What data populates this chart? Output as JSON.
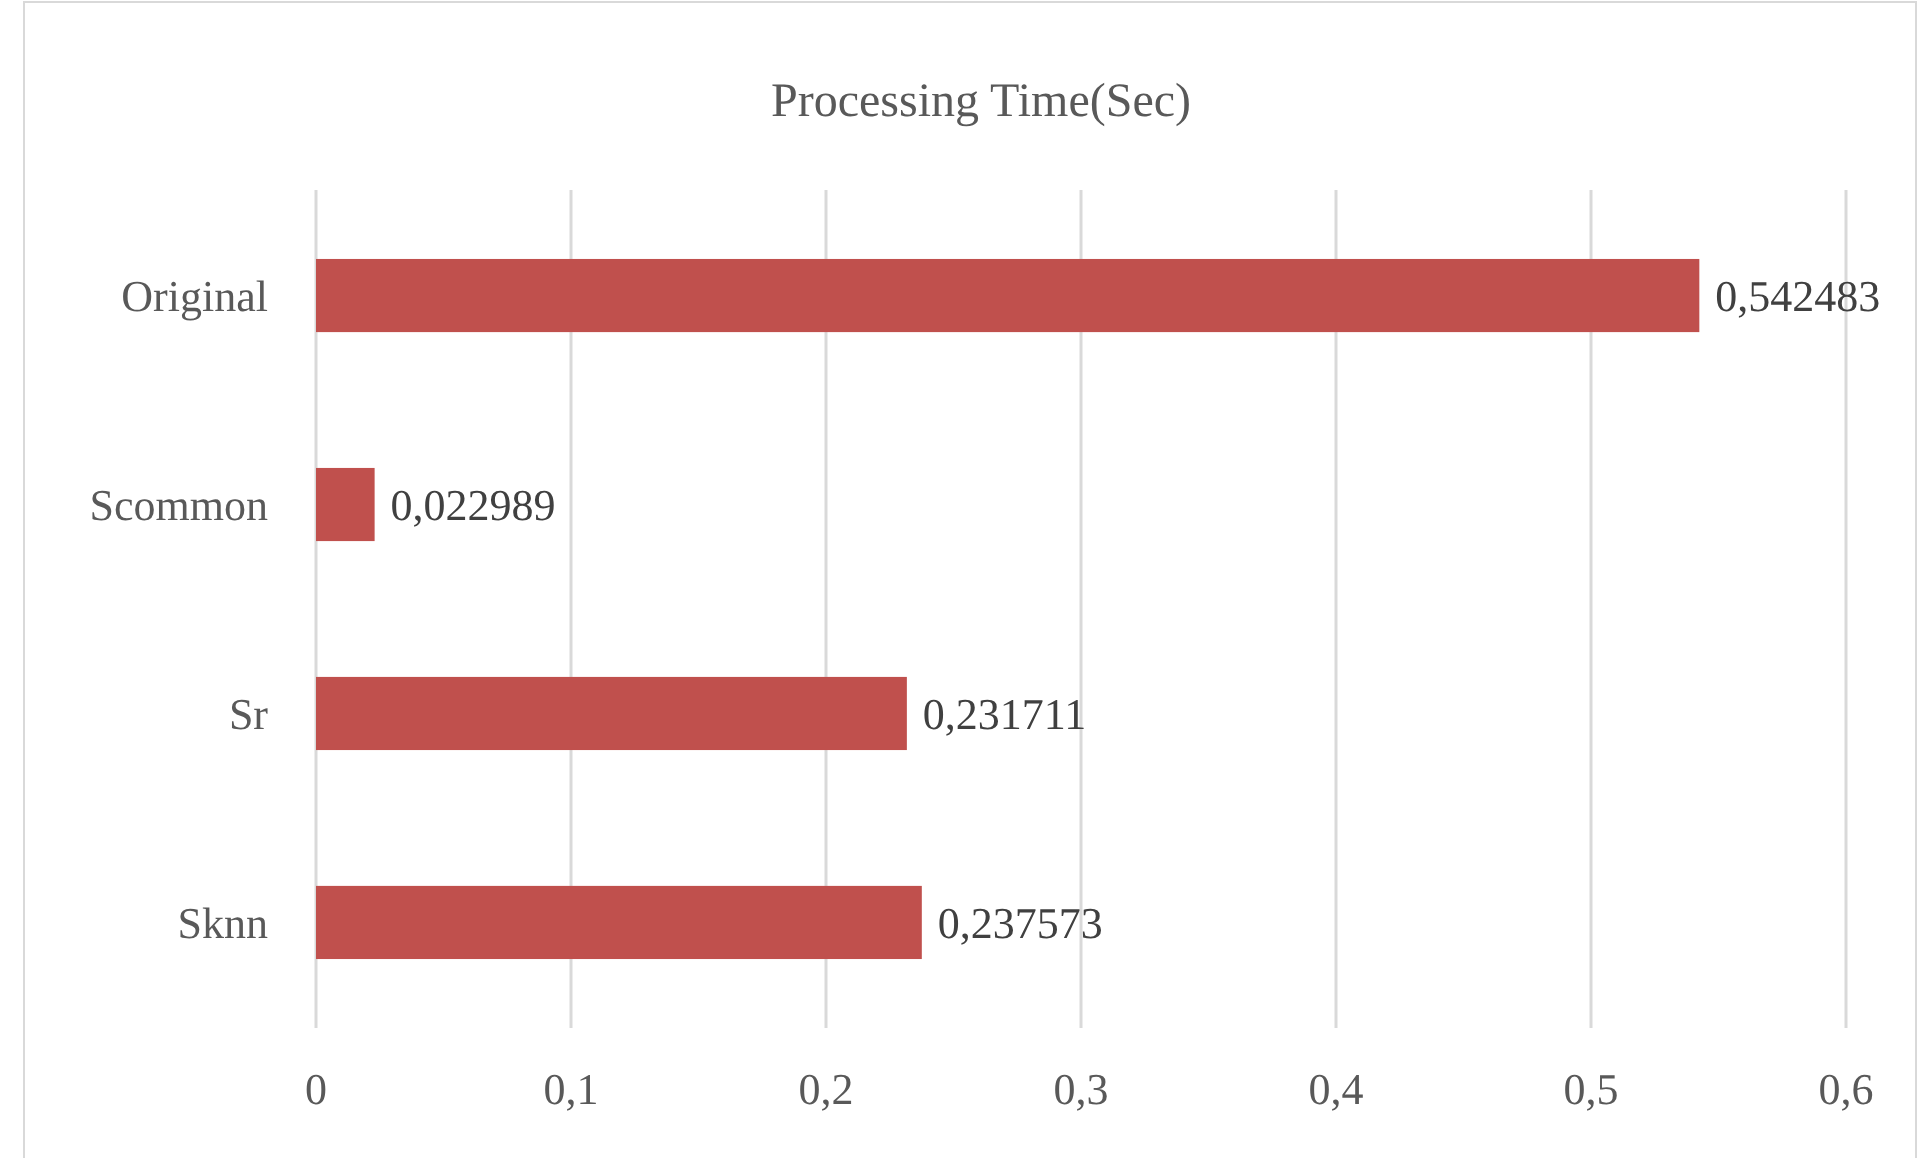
{
  "chart_data": {
    "type": "bar",
    "orientation": "horizontal",
    "title": "Processing Time(Sec)",
    "categories": [
      "Original",
      "Scommon",
      "Sr",
      "Sknn"
    ],
    "values": [
      0.542483,
      0.022989,
      0.231711,
      0.237573
    ],
    "value_labels": [
      "0,542483",
      "0,022989",
      "0,231711",
      "0,237573"
    ],
    "color": "#c0504d",
    "xlim": [
      0,
      0.6
    ],
    "xticks": [
      {
        "value": 0,
        "label": "0"
      },
      {
        "value": 0.1,
        "label": "0,1"
      },
      {
        "value": 0.2,
        "label": "0,2"
      },
      {
        "value": 0.3,
        "label": "0,3"
      },
      {
        "value": 0.4,
        "label": "0,4"
      },
      {
        "value": 0.5,
        "label": "0,5"
      },
      {
        "value": 0.6,
        "label": "0,6"
      }
    ],
    "grid": "x"
  }
}
